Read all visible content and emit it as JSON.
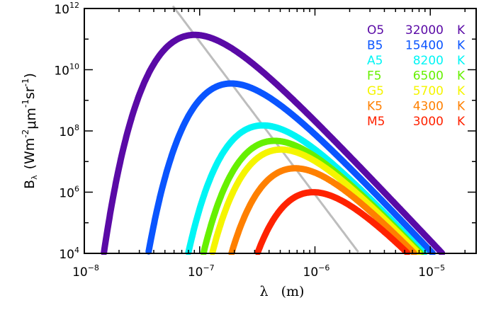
{
  "chart_data": {
    "type": "line",
    "title": "",
    "xlabel": {
      "symbol": "λ",
      "unit": "(m)"
    },
    "ylabel": {
      "main": "B",
      "sub": "λ",
      "unit_parts": [
        "(Wm",
        "-2",
        "μm",
        "-1",
        "sr",
        "-1",
        ")"
      ]
    },
    "x_scale": "log",
    "y_scale": "log",
    "xlim": [
      1e-08,
      2.5e-05
    ],
    "ylim": [
      10000.0,
      1000000000000.0
    ],
    "x_ticks": [
      {
        "base": "10",
        "exp": "-8",
        "value": 1e-08
      },
      {
        "base": "10",
        "exp": "-7",
        "value": 1e-07
      },
      {
        "base": "10",
        "exp": "-6",
        "value": 1e-06
      },
      {
        "base": "10",
        "exp": "-5",
        "value": 1e-05
      }
    ],
    "y_ticks": [
      {
        "base": "10",
        "exp": "12",
        "value": 1000000000000.0
      },
      {
        "base": "10",
        "exp": "10",
        "value": 10000000000.0
      },
      {
        "base": "10",
        "exp": "8",
        "value": 100000000.0
      },
      {
        "base": "10",
        "exp": "6",
        "value": 1000000.0
      },
      {
        "base": "10",
        "exp": "4",
        "value": 10000.0
      }
    ],
    "grid": false,
    "legend_position": "top-right",
    "series_model": "Planck blackbody B_λ(T)",
    "series": [
      {
        "name": "O5",
        "temperature": "32000",
        "unit": "K",
        "color": "#5a0aa6"
      },
      {
        "name": "B5",
        "temperature": "15400",
        "unit": "K",
        "color": "#0a55ff"
      },
      {
        "name": "A5",
        "temperature": "8200",
        "unit": "K",
        "color": "#00f5f5"
      },
      {
        "name": "F5",
        "temperature": "6500",
        "unit": "K",
        "color": "#66f000"
      },
      {
        "name": "G5",
        "temperature": "5700",
        "unit": "K",
        "color": "#f5f500"
      },
      {
        "name": "K5",
        "temperature": "4300",
        "unit": "K",
        "color": "#ff8000"
      },
      {
        "name": "M5",
        "temperature": "3000",
        "unit": "K",
        "color": "#ff2200"
      }
    ],
    "peak_locus": {
      "description_visible": false,
      "color": "#bdbdbd"
    }
  }
}
